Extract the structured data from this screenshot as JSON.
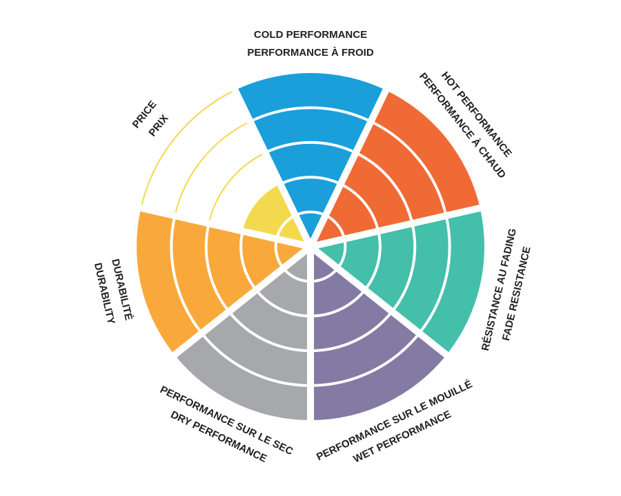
{
  "chart_data": {
    "type": "polar-area",
    "categories": [
      [
        "COLD PERFORMANCE",
        "PERFORMANCE À FROID"
      ],
      [
        "HOT PERFORMANCE",
        "PERFORMANCE À CHAUD"
      ],
      [
        "RÉSISTANCE AU FADING",
        "FADE RESISTANCE"
      ],
      [
        "PERFORMANCE SUR LE MOUILLÉ",
        "WET PERFORMANCE"
      ],
      [
        "PERFORMANCE SUR LE SEC",
        "DRY PERFORMANCE"
      ],
      [
        "DURABILITÉ",
        "DURABILITY"
      ],
      [
        "PRICE",
        "PRIX"
      ]
    ],
    "values": [
      5,
      5,
      5,
      5,
      5,
      5,
      2
    ],
    "colors": [
      "#1a9fdb",
      "#f06a35",
      "#44bfa9",
      "#837ba3",
      "#a7a8ab",
      "#f9a93c",
      "#f2d94e"
    ],
    "rlim": [
      0,
      5
    ],
    "rticks": [
      1,
      2,
      3,
      4,
      5
    ]
  }
}
